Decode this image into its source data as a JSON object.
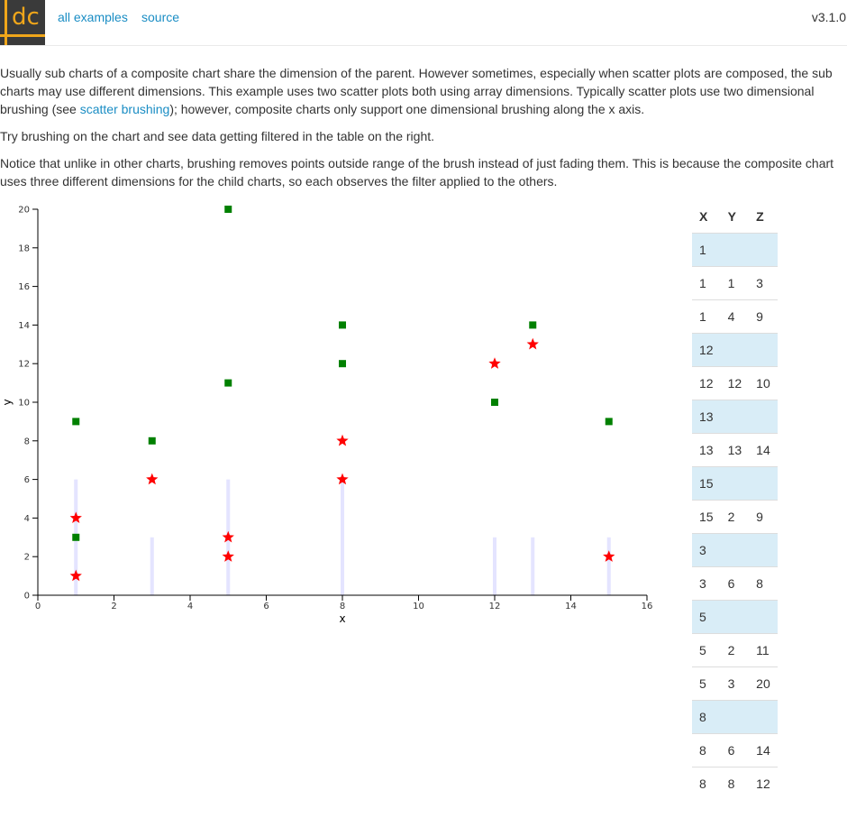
{
  "header": {
    "logo_text": "dc",
    "nav_all_examples": "all examples",
    "nav_source": "source",
    "version": "v3.1.0"
  },
  "intro": {
    "p1_a": "Usually sub charts of a composite chart share the dimension of the parent. However sometimes, especially when scatter plots are composed, the sub charts may use different dimensions. This example uses two scatter plots both using array dimensions. Typically scatter plots use two dimensional brushing (see ",
    "p1_link": "scatter brushing",
    "p1_b": "); however, composite charts only support one dimensional brushing along the x axis.",
    "p2": "Try brushing on the chart and see data getting filtered in the table on the right.",
    "p3": "Notice that unlike in other charts, brushing removes points outside range of the brush instead of just fading them. This is because the composite chart uses three different dimensions for the child charts, so each observes the filter applied to the others."
  },
  "chart_data": {
    "type": "scatter",
    "title": "",
    "xlabel": "x",
    "ylabel": "y",
    "xlim": [
      0,
      16
    ],
    "ylim": [
      0,
      20
    ],
    "x_ticks": [
      0,
      2,
      4,
      6,
      8,
      10,
      12,
      14,
      16
    ],
    "y_ticks": [
      0,
      2,
      4,
      6,
      8,
      10,
      12,
      14,
      16,
      18,
      20
    ],
    "colors": {
      "squares": "#008000",
      "stars": "#ff0000",
      "bars": "#e4e4ff"
    },
    "series": [
      {
        "marker": "square",
        "color": "#008000",
        "points": [
          [
            1,
            3
          ],
          [
            1,
            9
          ],
          [
            3,
            8
          ],
          [
            5,
            11
          ],
          [
            5,
            20
          ],
          [
            8,
            12
          ],
          [
            8,
            14
          ],
          [
            12,
            10
          ],
          [
            13,
            14
          ],
          [
            15,
            9
          ]
        ]
      },
      {
        "marker": "star",
        "color": "#ff0000",
        "points": [
          [
            1,
            1
          ],
          [
            1,
            4
          ],
          [
            3,
            6
          ],
          [
            5,
            2
          ],
          [
            5,
            3
          ],
          [
            8,
            6
          ],
          [
            8,
            8
          ],
          [
            12,
            12
          ],
          [
            13,
            13
          ],
          [
            15,
            2
          ]
        ]
      },
      {
        "marker": "bar",
        "color": "#e4e4ff",
        "points": [
          [
            1,
            6
          ],
          [
            3,
            3
          ],
          [
            5,
            6
          ],
          [
            8,
            6
          ],
          [
            12,
            3
          ],
          [
            13,
            3
          ],
          [
            15,
            3
          ]
        ]
      }
    ]
  },
  "table": {
    "headers": [
      "X",
      "Y",
      "Z"
    ],
    "rows": [
      {
        "group": true,
        "cells": [
          "1",
          "",
          ""
        ]
      },
      {
        "group": false,
        "cells": [
          "1",
          "1",
          "3"
        ]
      },
      {
        "group": false,
        "cells": [
          "1",
          "4",
          "9"
        ]
      },
      {
        "group": true,
        "cells": [
          "12",
          "",
          ""
        ]
      },
      {
        "group": false,
        "cells": [
          "12",
          "12",
          "10"
        ]
      },
      {
        "group": true,
        "cells": [
          "13",
          "",
          ""
        ]
      },
      {
        "group": false,
        "cells": [
          "13",
          "13",
          "14"
        ]
      },
      {
        "group": true,
        "cells": [
          "15",
          "",
          ""
        ]
      },
      {
        "group": false,
        "cells": [
          "15",
          "2",
          "9"
        ]
      },
      {
        "group": true,
        "cells": [
          "3",
          "",
          ""
        ]
      },
      {
        "group": false,
        "cells": [
          "3",
          "6",
          "8"
        ]
      },
      {
        "group": true,
        "cells": [
          "5",
          "",
          ""
        ]
      },
      {
        "group": false,
        "cells": [
          "5",
          "2",
          "11"
        ]
      },
      {
        "group": false,
        "cells": [
          "5",
          "3",
          "20"
        ]
      },
      {
        "group": true,
        "cells": [
          "8",
          "",
          ""
        ]
      },
      {
        "group": false,
        "cells": [
          "8",
          "6",
          "14"
        ]
      },
      {
        "group": false,
        "cells": [
          "8",
          "8",
          "12"
        ]
      }
    ]
  }
}
